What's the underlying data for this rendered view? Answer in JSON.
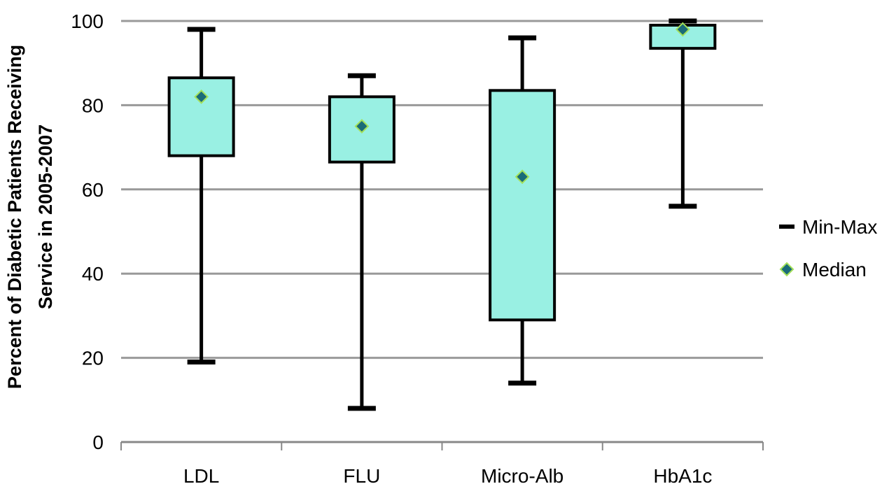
{
  "chart_data": {
    "type": "box",
    "title": "",
    "xlabel": "",
    "ylabel_lines": [
      "Percent of Diabetic Patients Receiving",
      "Service in 2005-2007"
    ],
    "ylim": [
      0,
      100
    ],
    "yticks": [
      0,
      20,
      40,
      60,
      80,
      100
    ],
    "grid": true,
    "legend_position": "right",
    "categories": [
      "LDL",
      "FLU",
      "Micro-Alb",
      "HbA1c"
    ],
    "series": [
      {
        "category": "LDL",
        "min": 19,
        "q1": 68,
        "median": 82,
        "q3": 86.5,
        "max": 98
      },
      {
        "category": "FLU",
        "min": 8,
        "q1": 66.5,
        "median": 75,
        "q3": 82,
        "max": 87
      },
      {
        "category": "Micro-Alb",
        "min": 14,
        "q1": 29,
        "median": 63,
        "q3": 83.5,
        "max": 96
      },
      {
        "category": "HbA1c",
        "min": 56,
        "q1": 93.5,
        "median": 98,
        "q3": 99,
        "max": 100
      }
    ],
    "legend": [
      {
        "label": "Min-Max",
        "marker": "line"
      },
      {
        "label": "Median",
        "marker": "diamond"
      }
    ],
    "colors": {
      "box_fill": "#99f0e3",
      "box_stroke": "#000000",
      "whisker": "#000000",
      "median_fill": "#1a6b78",
      "median_stroke": "#a3e05a",
      "grid": "#999999",
      "axis": "#888888"
    }
  }
}
